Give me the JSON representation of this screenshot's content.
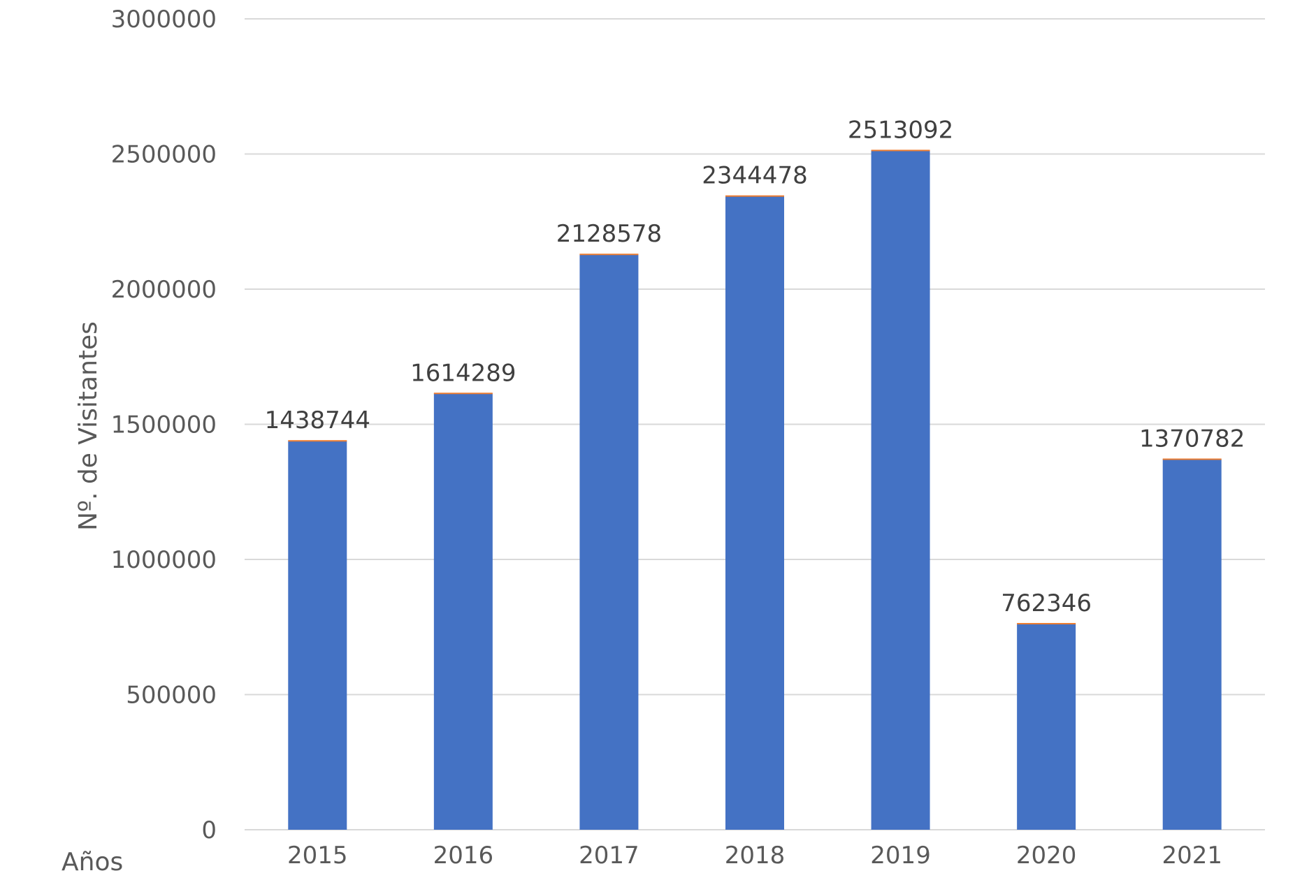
{
  "chart_data": {
    "type": "bar",
    "title": "",
    "xlabel": "Años",
    "ylabel": "Nº. de Visitantes",
    "categories": [
      "2015",
      "2016",
      "2017",
      "2018",
      "2019",
      "2020",
      "2021"
    ],
    "values": [
      1438744,
      1614289,
      2128578,
      2344478,
      2513092,
      762346,
      1370782
    ],
    "value_labels": [
      "1438744",
      "1614289",
      "2128578",
      "2344478",
      "2513092",
      "762346",
      "1370782"
    ],
    "ylim": [
      0,
      3000000
    ],
    "yticks": [
      "0",
      "500000",
      "1000000",
      "1500000",
      "2000000",
      "2500000",
      "3000000"
    ],
    "ytick_values": [
      0,
      500000,
      1000000,
      1500000,
      2000000,
      2500000,
      3000000
    ],
    "grid": true,
    "legend": "none",
    "colors": {
      "bar": "#4472C4",
      "bar_top": "#ED7D31",
      "grid": "#D9D9D9",
      "text": "#595959",
      "label": "#404040"
    }
  }
}
